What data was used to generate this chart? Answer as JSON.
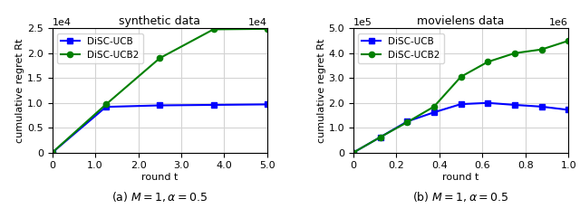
{
  "left": {
    "title": "synthetic data",
    "xlabel": "round t",
    "ylabel": "cumulative regret Rt",
    "xlim": [
      0,
      50000
    ],
    "ylim": [
      0,
      25000
    ],
    "yticks": [
      0,
      5000,
      10000,
      15000,
      20000,
      25000
    ],
    "xticks": [
      0,
      10000,
      20000,
      30000,
      40000,
      50000
    ],
    "disc_ucb_x": [
      0,
      12500,
      25000,
      37500,
      50000
    ],
    "disc_ucb_y": [
      0,
      9200,
      9500,
      9600,
      9700
    ],
    "disc_ucb2_x": [
      0,
      12500,
      25000,
      37500,
      50000
    ],
    "disc_ucb2_y": [
      0,
      9700,
      19000,
      24800,
      24900
    ],
    "caption": "(a) $M=1, \\alpha=0.5$"
  },
  "right": {
    "title": "movielens data",
    "xlabel": "round t",
    "ylabel": "cumulative regret Rt",
    "xlim": [
      0,
      1000000
    ],
    "ylim": [
      0,
      500000
    ],
    "yticks": [
      0,
      100000,
      200000,
      300000,
      400000,
      500000
    ],
    "xticks": [
      0,
      200000,
      400000,
      600000,
      800000,
      1000000
    ],
    "disc_ucb_x": [
      0,
      125000,
      250000,
      375000,
      500000,
      625000,
      750000,
      875000,
      1000000
    ],
    "disc_ucb_y": [
      0,
      62000,
      125000,
      162000,
      195000,
      200000,
      192000,
      185000,
      172000
    ],
    "disc_ucb2_x": [
      0,
      125000,
      250000,
      375000,
      500000,
      625000,
      750000,
      875000,
      1000000
    ],
    "disc_ucb2_y": [
      0,
      62000,
      122000,
      185000,
      305000,
      365000,
      400000,
      415000,
      450000
    ],
    "caption": "(b) $M=1, \\alpha=0.5$"
  },
  "ucb_color": "#0000ff",
  "ucb_marker": "s",
  "ucb_label": "DiSC-UCB",
  "ucb2_color": "#008000",
  "ucb2_marker": "o",
  "ucb2_label": "DiSC-UCB2"
}
